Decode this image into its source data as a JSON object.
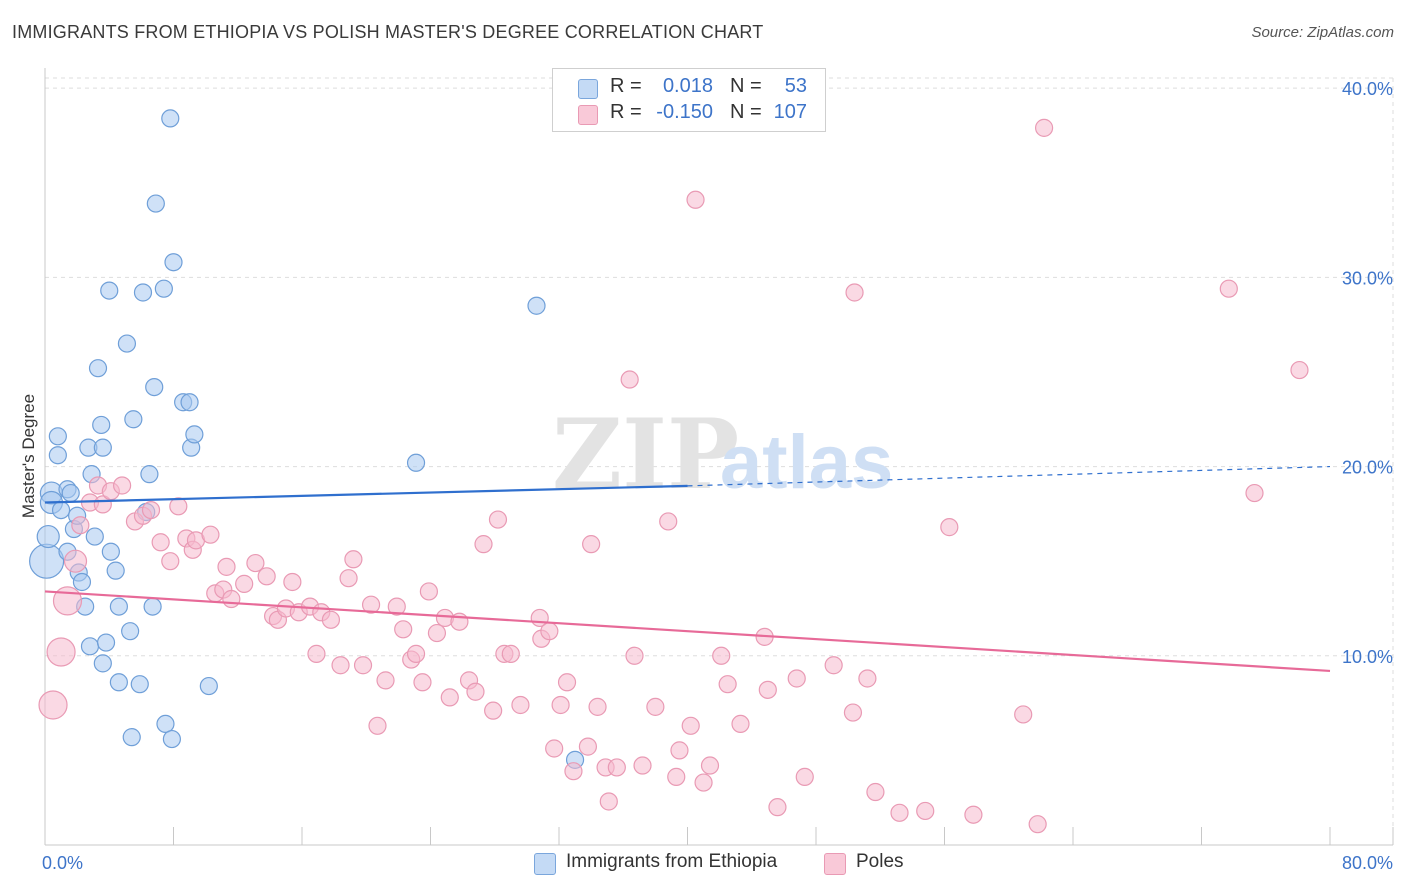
{
  "title": "IMMIGRANTS FROM ETHIOPIA VS POLISH MASTER'S DEGREE CORRELATION CHART",
  "source": "Source: ZipAtlas.com",
  "watermark": {
    "zip": "ZIP",
    "atlas": "atlas"
  },
  "colors": {
    "blue_fill": "#a8c8f0",
    "blue_stroke": "#6f9fd8",
    "blue_line": "#2f6fce",
    "pink_fill": "#f6b9cd",
    "pink_stroke": "#e99ab4",
    "pink_line": "#e76a98",
    "grid": "#dddddd",
    "tick_text": "#3d74c9"
  },
  "legend": {
    "rows": [
      {
        "r_label": "R =",
        "r_value": "0.018",
        "n_label": "N =",
        "n_value": "53",
        "swatch": "blue"
      },
      {
        "r_label": "R =",
        "r_value": "-0.150",
        "n_label": "N =",
        "n_value": "107",
        "swatch": "pink"
      }
    ]
  },
  "bottom_legend": [
    {
      "label": "Immigrants from Ethiopia",
      "swatch": "blue"
    },
    {
      "label": "Poles",
      "swatch": "pink"
    }
  ],
  "chart_data": {
    "type": "scatter",
    "xlabel": "",
    "ylabel": "Master's Degree",
    "xlim": [
      0,
      80
    ],
    "ylim": [
      0,
      40.8
    ],
    "x_tick_labels": [
      "0.0%",
      "80.0%"
    ],
    "y_ticks": [
      10,
      20,
      30,
      40
    ],
    "y_tick_labels": [
      "10.0%",
      "20.0%",
      "30.0%",
      "40.0%"
    ],
    "grid": true,
    "series": [
      {
        "name": "Immigrants from Ethiopia",
        "color": "blue",
        "points": [
          [
            0.1,
            15.0,
            4
          ],
          [
            0.2,
            16.3,
            2
          ],
          [
            0.4,
            18.6,
            2
          ],
          [
            0.4,
            18.1,
            2
          ],
          [
            0.8,
            21.6,
            1
          ],
          [
            0.8,
            20.6,
            1
          ],
          [
            1.0,
            17.7,
            1
          ],
          [
            1.4,
            18.8,
            1
          ],
          [
            1.6,
            18.6,
            1
          ],
          [
            1.4,
            15.5,
            1
          ],
          [
            1.8,
            16.7,
            1
          ],
          [
            2.0,
            17.4,
            1
          ],
          [
            2.1,
            14.4,
            1
          ],
          [
            2.3,
            13.9,
            1
          ],
          [
            2.5,
            12.6,
            1
          ],
          [
            2.7,
            21.0,
            1
          ],
          [
            2.8,
            10.5,
            1
          ],
          [
            2.9,
            19.6,
            1
          ],
          [
            3.1,
            16.3,
            1
          ],
          [
            3.3,
            25.2,
            1
          ],
          [
            3.5,
            22.2,
            1
          ],
          [
            3.6,
            21.0,
            1
          ],
          [
            3.6,
            9.6,
            1
          ],
          [
            3.8,
            10.7,
            1
          ],
          [
            4.0,
            29.3,
            1
          ],
          [
            4.1,
            15.5,
            1
          ],
          [
            4.4,
            14.5,
            1
          ],
          [
            4.6,
            12.6,
            1
          ],
          [
            4.6,
            8.6,
            1
          ],
          [
            5.1,
            26.5,
            1
          ],
          [
            5.3,
            11.3,
            1
          ],
          [
            5.5,
            22.5,
            1
          ],
          [
            5.4,
            5.7,
            1
          ],
          [
            5.9,
            8.5,
            1
          ],
          [
            6.1,
            29.2,
            1
          ],
          [
            6.3,
            17.6,
            1
          ],
          [
            6.5,
            19.6,
            1
          ],
          [
            6.8,
            24.2,
            1
          ],
          [
            6.9,
            33.9,
            1
          ],
          [
            6.7,
            12.6,
            1
          ],
          [
            7.4,
            29.4,
            1
          ],
          [
            7.5,
            6.4,
            1
          ],
          [
            7.8,
            38.4,
            1
          ],
          [
            7.9,
            5.6,
            1
          ],
          [
            8.0,
            30.8,
            1
          ],
          [
            8.6,
            23.4,
            1
          ],
          [
            9.0,
            23.4,
            1
          ],
          [
            9.1,
            21.0,
            1
          ],
          [
            9.3,
            21.7,
            1
          ],
          [
            10.2,
            8.4,
            1
          ],
          [
            23.1,
            20.2,
            1
          ],
          [
            30.6,
            28.5,
            1
          ],
          [
            33.0,
            4.5,
            1
          ]
        ]
      },
      {
        "name": "Poles",
        "color": "pink",
        "points": [
          [
            0.5,
            7.4,
            3
          ],
          [
            1.0,
            10.2,
            3
          ],
          [
            1.4,
            12.9,
            3
          ],
          [
            1.9,
            15.0,
            2
          ],
          [
            2.2,
            16.9,
            1
          ],
          [
            2.8,
            18.1,
            1
          ],
          [
            3.3,
            19.0,
            1
          ],
          [
            3.6,
            18.0,
            1
          ],
          [
            4.1,
            18.7,
            1
          ],
          [
            4.8,
            19.0,
            1
          ],
          [
            5.6,
            17.1,
            1
          ],
          [
            6.1,
            17.4,
            1
          ],
          [
            6.6,
            17.7,
            1
          ],
          [
            7.2,
            16.0,
            1
          ],
          [
            7.8,
            15.0,
            1
          ],
          [
            8.3,
            17.9,
            1
          ],
          [
            8.8,
            16.2,
            1
          ],
          [
            9.2,
            15.6,
            1
          ],
          [
            9.4,
            16.1,
            1
          ],
          [
            10.3,
            16.4,
            1
          ],
          [
            10.6,
            13.3,
            1
          ],
          [
            11.1,
            13.5,
            1
          ],
          [
            11.3,
            14.7,
            1
          ],
          [
            11.6,
            13.0,
            1
          ],
          [
            12.4,
            13.8,
            1
          ],
          [
            13.1,
            14.9,
            1
          ],
          [
            13.8,
            14.2,
            1
          ],
          [
            14.2,
            12.1,
            1
          ],
          [
            14.5,
            11.9,
            1
          ],
          [
            15.0,
            12.5,
            1
          ],
          [
            15.4,
            13.9,
            1
          ],
          [
            15.8,
            12.3,
            1
          ],
          [
            16.5,
            12.6,
            1
          ],
          [
            16.9,
            10.1,
            1
          ],
          [
            17.2,
            12.3,
            1
          ],
          [
            17.8,
            11.9,
            1
          ],
          [
            18.4,
            9.5,
            1
          ],
          [
            18.9,
            14.1,
            1
          ],
          [
            19.2,
            15.1,
            1
          ],
          [
            19.8,
            9.5,
            1
          ],
          [
            20.3,
            12.7,
            1
          ],
          [
            20.7,
            6.3,
            1
          ],
          [
            21.2,
            8.7,
            1
          ],
          [
            21.9,
            12.6,
            1
          ],
          [
            22.3,
            11.4,
            1
          ],
          [
            22.8,
            9.8,
            1
          ],
          [
            23.1,
            10.1,
            1
          ],
          [
            23.5,
            8.6,
            1
          ],
          [
            23.9,
            13.4,
            1
          ],
          [
            24.4,
            11.2,
            1
          ],
          [
            24.9,
            12.0,
            1
          ],
          [
            25.2,
            7.8,
            1
          ],
          [
            25.8,
            11.8,
            1
          ],
          [
            26.4,
            8.7,
            1
          ],
          [
            26.8,
            8.1,
            1
          ],
          [
            27.3,
            15.9,
            1
          ],
          [
            27.9,
            7.1,
            1
          ],
          [
            28.2,
            17.2,
            1
          ],
          [
            28.6,
            10.1,
            1
          ],
          [
            29.0,
            10.1,
            1
          ],
          [
            29.6,
            7.4,
            1
          ],
          [
            30.8,
            12.0,
            1
          ],
          [
            30.9,
            10.9,
            1
          ],
          [
            31.4,
            11.3,
            1
          ],
          [
            31.7,
            5.1,
            1
          ],
          [
            32.1,
            7.4,
            1
          ],
          [
            32.5,
            8.6,
            1
          ],
          [
            32.9,
            3.9,
            1
          ],
          [
            33.8,
            5.2,
            1
          ],
          [
            34.0,
            15.9,
            1
          ],
          [
            34.4,
            7.3,
            1
          ],
          [
            34.9,
            4.1,
            1
          ],
          [
            35.1,
            2.3,
            1
          ],
          [
            35.6,
            4.1,
            1
          ],
          [
            36.4,
            24.6,
            1
          ],
          [
            36.7,
            10.0,
            1
          ],
          [
            37.2,
            4.2,
            1
          ],
          [
            38.0,
            7.3,
            1
          ],
          [
            38.8,
            17.1,
            1
          ],
          [
            39.3,
            3.6,
            1
          ],
          [
            39.5,
            5.0,
            1
          ],
          [
            40.2,
            6.3,
            1
          ],
          [
            40.5,
            34.1,
            1
          ],
          [
            41.0,
            3.3,
            1
          ],
          [
            41.4,
            4.2,
            1
          ],
          [
            42.1,
            10.0,
            1
          ],
          [
            42.5,
            8.5,
            1
          ],
          [
            43.3,
            6.4,
            1
          ],
          [
            44.8,
            11.0,
            1
          ],
          [
            45.0,
            8.2,
            1
          ],
          [
            45.6,
            2.0,
            1
          ],
          [
            46.8,
            8.8,
            1
          ],
          [
            47.3,
            3.6,
            1
          ],
          [
            49.1,
            9.5,
            1
          ],
          [
            50.3,
            7.0,
            1
          ],
          [
            50.4,
            29.2,
            1
          ],
          [
            51.2,
            8.8,
            1
          ],
          [
            51.7,
            2.8,
            1
          ],
          [
            53.2,
            1.7,
            1
          ],
          [
            54.8,
            1.8,
            1
          ],
          [
            56.3,
            16.8,
            1
          ],
          [
            57.8,
            1.6,
            1
          ],
          [
            60.9,
            6.9,
            1
          ],
          [
            61.8,
            1.1,
            1
          ],
          [
            62.2,
            37.9,
            1
          ],
          [
            73.7,
            29.4,
            1
          ],
          [
            75.3,
            18.6,
            1
          ],
          [
            78.1,
            25.1,
            1
          ]
        ]
      }
    ],
    "trend_lines": [
      {
        "series": "Immigrants from Ethiopia",
        "x": [
          0,
          40
        ],
        "y": [
          18.1,
          18.98
        ],
        "dashed_to": [
          80,
          20.0
        ]
      },
      {
        "series": "Poles",
        "x": [
          0,
          80
        ],
        "y": [
          13.4,
          9.2
        ]
      }
    ]
  }
}
